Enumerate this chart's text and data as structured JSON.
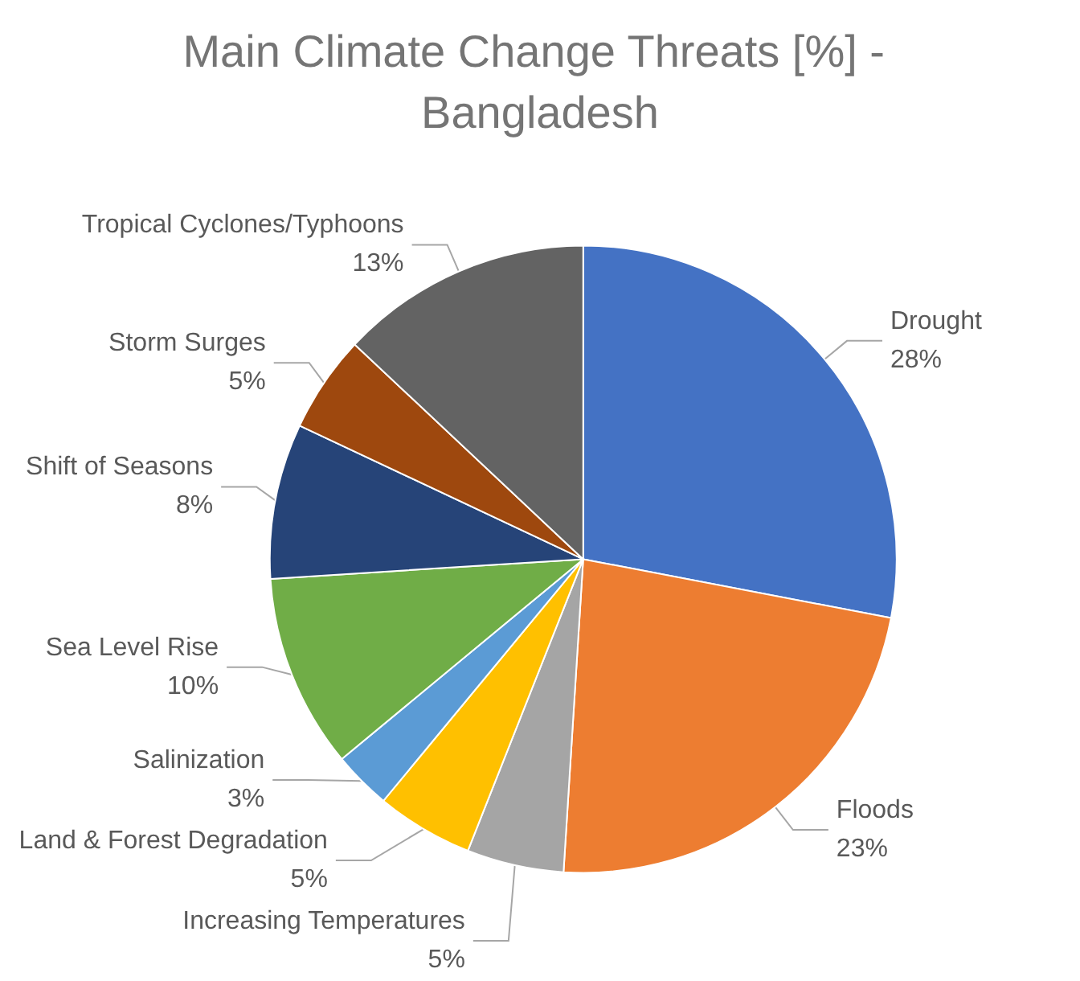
{
  "chart_data": {
    "type": "pie",
    "title": "Main Climate Change Threats [%] - Bangladesh",
    "categories": [
      "Drought",
      "Floods",
      "Increasing Temperatures",
      "Land & Forest Degradation",
      "Salinization",
      "Sea Level Rise",
      "Shift of Seasons",
      "Storm Surges",
      "Tropical Cyclones/Typhoons"
    ],
    "values": [
      28,
      23,
      5,
      5,
      3,
      10,
      8,
      5,
      13
    ],
    "colors": [
      "#4472c4",
      "#ed7d31",
      "#a5a5a5",
      "#ffc000",
      "#5b9bd5",
      "#70ad47",
      "#264478",
      "#9e480e",
      "#636363"
    ],
    "value_labels": [
      "28%",
      "23%",
      "5%",
      "5%",
      "3%",
      "10%",
      "8%",
      "5%",
      "13%"
    ]
  }
}
